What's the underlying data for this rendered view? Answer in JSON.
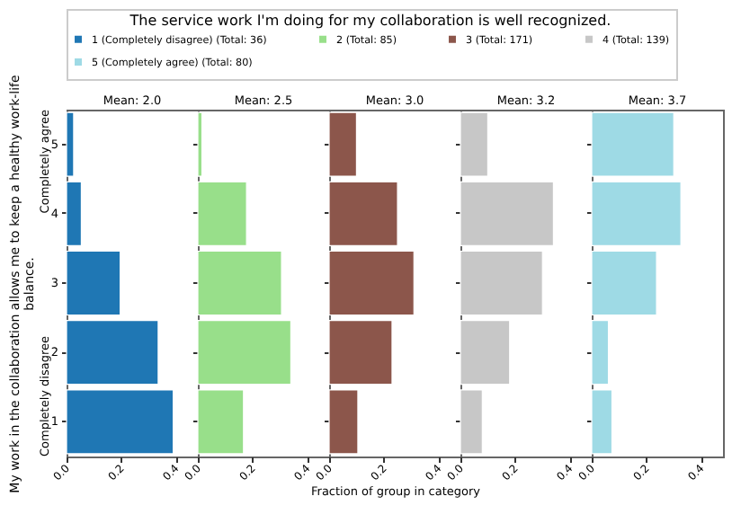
{
  "chart_data": [
    {
      "type": "bar",
      "orientation": "horizontal",
      "title": "Mean: 2.0",
      "legend_title": "The service work I'm doing for my collaboration is well recognized.",
      "legend": "top",
      "ylabel": "My work in the collaboration allows me to keep a healthy work-life balance.",
      "categories": [
        "5",
        "4",
        "3",
        "2",
        "1"
      ],
      "series": [
        {
          "name": "1 (Completely disagree) (Total: 36)",
          "color": "#1f77b4",
          "values": [
            0.026,
            0.054,
            0.196,
            0.335,
            0.39
          ]
        }
      ],
      "xlim": [
        0,
        0.48
      ],
      "xticks": [
        {
          "value": 0,
          "label": "0.0"
        },
        {
          "value": 0.2,
          "label": "0.2"
        },
        {
          "value": 0.4,
          "label": "0.4"
        }
      ],
      "annotations": [
        "Completely agree",
        "Completely disagree"
      ]
    },
    {
      "type": "bar",
      "orientation": "horizontal",
      "title": "Mean: 2.5",
      "legend": "top",
      "categories": [
        "5",
        "4",
        "3",
        "2",
        "1"
      ],
      "series": [
        {
          "name": "2 (Total: 85)",
          "color": "#98df8a",
          "values": [
            0.015,
            0.178,
            0.306,
            0.34,
            0.167
          ]
        }
      ],
      "xlim": [
        0,
        0.48
      ],
      "xticks": [
        {
          "value": 0,
          "label": "0.0"
        },
        {
          "value": 0.2,
          "label": "0.2"
        },
        {
          "value": 0.4,
          "label": "0.4"
        }
      ],
      "tick_labels": "x"
    },
    {
      "type": "bar",
      "orientation": "horizontal",
      "title": "Mean: 3.0",
      "legend": "top",
      "xlabel": "Fraction of group in category",
      "categories": [
        "5",
        "4",
        "3",
        "2",
        "1"
      ],
      "series": [
        {
          "name": "3 (Total: 171)",
          "color": "#8c564b",
          "values": [
            0.1,
            0.25,
            0.31,
            0.23,
            0.105
          ]
        }
      ],
      "xlim": [
        0,
        0.48
      ],
      "xticks": [
        {
          "value": 0,
          "label": "0.0"
        },
        {
          "value": 0.2,
          "label": "0.2"
        },
        {
          "value": 0.4,
          "label": "0.4"
        }
      ],
      "tick_labels": "x"
    },
    {
      "type": "bar",
      "orientation": "horizontal",
      "title": "Mean: 3.2",
      "legend": "top",
      "categories": [
        "5",
        "4",
        "3",
        "2",
        "1"
      ],
      "series": [
        {
          "name": "4 (Total: 139)",
          "color": "#c7c7c7",
          "values": [
            0.1,
            0.34,
            0.3,
            0.18,
            0.08
          ]
        }
      ],
      "xlim": [
        0,
        0.48
      ],
      "xticks": [
        {
          "value": 0,
          "label": "0.0"
        },
        {
          "value": 0.2,
          "label": "0.2"
        },
        {
          "value": 0.4,
          "label": "0.4"
        }
      ],
      "tick_labels": "x"
    },
    {
      "type": "bar",
      "orientation": "horizontal",
      "title": "Mean: 3.7",
      "legend": "top",
      "categories": [
        "5",
        "4",
        "3",
        "2",
        "1"
      ],
      "series": [
        {
          "name": "5 (Completely agree) (Total: 80)",
          "color": "#9edae5",
          "values": [
            0.3,
            0.326,
            0.237,
            0.061,
            0.074
          ]
        }
      ],
      "xlim": [
        0,
        0.48
      ],
      "xticks": [
        {
          "value": 0,
          "label": "0.0"
        },
        {
          "value": 0.2,
          "label": "0.2"
        },
        {
          "value": 0.4,
          "label": "0.4"
        }
      ],
      "tick_labels": "x"
    }
  ]
}
